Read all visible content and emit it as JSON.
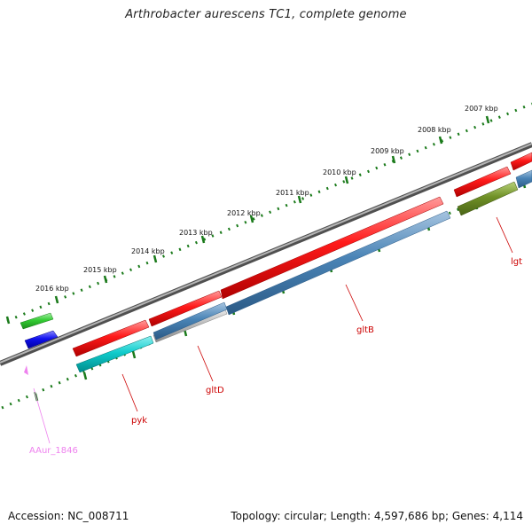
{
  "title": "Arthrobacter aurescens TC1, complete genome",
  "footer": {
    "accession": "Accession: NC_008711",
    "topology": "Topology: circular; Length: 4,597,686 bp; Genes: 4,114"
  },
  "kbp_labels": [
    "2016 kbp",
    "2015 kbp",
    "2014 kbp",
    "2013 kbp",
    "2012 kbp",
    "2011 kbp",
    "2010 kbp",
    "2009 kbp",
    "2008 kbp",
    "2007 kbp"
  ],
  "gene_labels": {
    "aaur_1846": "AAur_1846",
    "pyk": "pyk",
    "gltD": "gltD",
    "gltB": "gltB",
    "lgt": "lgt"
  },
  "colors": {
    "backbone": "#808080",
    "red_gene": "#ff0000",
    "cyan_gene": "#00cccc",
    "steelblue_gene": "#4682b4",
    "olive_gene": "#6b8e23",
    "green_gene": "#33cc33",
    "blue_gene": "#0000ee",
    "grey_gene": "#b0b0b0",
    "tick_green": "#006600",
    "label_red": "#cc0000",
    "label_pink": "#ee82ee"
  }
}
